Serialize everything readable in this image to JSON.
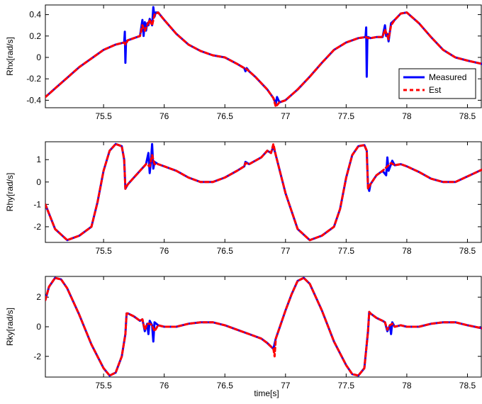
{
  "xlabel": "time[s]",
  "colors": {
    "measured": "#0000ff",
    "est": "#ff0000"
  },
  "legend": {
    "placement": "lower-right",
    "items": [
      "Measured",
      "Est"
    ]
  },
  "chart_data": [
    {
      "type": "line",
      "ylabel": "Rhx[rad/s]",
      "xlim": [
        75.02,
        78.62
      ],
      "ylim": [
        -0.47,
        0.49
      ],
      "xticks": [
        75.5,
        76,
        76.5,
        77,
        77.5,
        78,
        78.5
      ],
      "xtick_labels": [
        "75.5",
        "76",
        "76.5",
        "77",
        "77.5",
        "78",
        "78.5"
      ],
      "yticks": [
        -0.4,
        -0.2,
        0,
        0.2,
        0.4
      ],
      "ytick_labels": [
        "-0.4",
        "-0.2",
        "0",
        "0.2",
        "0.4"
      ],
      "series": [
        {
          "name": "Measured",
          "x": [
            75.02,
            75.1,
            75.2,
            75.3,
            75.4,
            75.5,
            75.6,
            75.67,
            75.675,
            75.68,
            75.685,
            75.7,
            75.75,
            75.8,
            75.82,
            75.83,
            75.84,
            75.85,
            75.86,
            75.87,
            75.88,
            75.9,
            75.91,
            75.92,
            75.93,
            75.95,
            76.0,
            76.1,
            76.2,
            76.3,
            76.4,
            76.5,
            76.6,
            76.66,
            76.67,
            76.68,
            76.7,
            76.75,
            76.8,
            76.85,
            76.9,
            76.92,
            76.93,
            76.95,
            77.0,
            77.1,
            77.2,
            77.3,
            77.4,
            77.5,
            77.6,
            77.66,
            77.665,
            77.67,
            77.675,
            77.68,
            77.7,
            77.75,
            77.8,
            77.82,
            77.83,
            77.84,
            77.85,
            77.87,
            77.9,
            77.95,
            78.0,
            78.1,
            78.2,
            78.3,
            78.4,
            78.5,
            78.62
          ],
          "y": [
            -0.37,
            -0.29,
            -0.19,
            -0.09,
            -0.01,
            0.07,
            0.12,
            0.14,
            0.24,
            -0.05,
            0.15,
            0.16,
            0.18,
            0.2,
            0.35,
            0.2,
            0.33,
            0.25,
            0.32,
            0.3,
            0.36,
            0.3,
            0.47,
            0.38,
            0.42,
            0.42,
            0.35,
            0.22,
            0.12,
            0.06,
            0.02,
            0.0,
            -0.06,
            -0.1,
            -0.13,
            -0.1,
            -0.13,
            -0.18,
            -0.24,
            -0.3,
            -0.38,
            -0.43,
            -0.37,
            -0.42,
            -0.4,
            -0.3,
            -0.18,
            -0.05,
            0.07,
            0.14,
            0.18,
            0.19,
            0.28,
            -0.18,
            0.18,
            0.19,
            0.18,
            0.19,
            0.19,
            0.3,
            0.2,
            0.22,
            0.15,
            0.32,
            0.35,
            0.41,
            0.42,
            0.32,
            0.19,
            0.07,
            0.0,
            -0.03,
            -0.06
          ]
        },
        {
          "name": "Est",
          "x": [
            75.02,
            75.1,
            75.2,
            75.3,
            75.4,
            75.5,
            75.6,
            75.67,
            75.68,
            75.7,
            75.75,
            75.8,
            75.82,
            75.84,
            75.86,
            75.88,
            75.9,
            75.92,
            75.95,
            76.0,
            76.1,
            76.2,
            76.3,
            76.4,
            76.5,
            76.6,
            76.66,
            76.68,
            76.7,
            76.75,
            76.8,
            76.85,
            76.9,
            76.92,
            76.95,
            77.0,
            77.1,
            77.2,
            77.3,
            77.4,
            77.5,
            77.6,
            77.66,
            77.68,
            77.7,
            77.75,
            77.8,
            77.82,
            77.84,
            77.85,
            77.87,
            77.9,
            77.95,
            78.0,
            78.1,
            78.2,
            78.3,
            78.4,
            78.5,
            78.62
          ],
          "y": [
            -0.37,
            -0.29,
            -0.19,
            -0.09,
            -0.01,
            0.07,
            0.12,
            0.14,
            0.12,
            0.16,
            0.18,
            0.2,
            0.3,
            0.25,
            0.3,
            0.35,
            0.3,
            0.4,
            0.42,
            0.35,
            0.22,
            0.12,
            0.06,
            0.02,
            0.0,
            -0.06,
            -0.1,
            -0.11,
            -0.13,
            -0.18,
            -0.24,
            -0.3,
            -0.38,
            -0.46,
            -0.42,
            -0.4,
            -0.3,
            -0.18,
            -0.05,
            0.07,
            0.14,
            0.18,
            0.19,
            0.18,
            0.18,
            0.19,
            0.19,
            0.26,
            0.2,
            0.17,
            0.3,
            0.35,
            0.41,
            0.42,
            0.32,
            0.19,
            0.07,
            0.0,
            -0.03,
            -0.06
          ]
        }
      ]
    },
    {
      "type": "line",
      "ylabel": "Rhy[rad/s]",
      "xlim": [
        75.02,
        78.62
      ],
      "ylim": [
        -2.7,
        1.8
      ],
      "xticks": [
        75.5,
        76,
        76.5,
        77,
        77.5,
        78,
        78.5
      ],
      "xtick_labels": [
        "75.5",
        "76",
        "76.5",
        "77",
        "77.5",
        "78",
        "78.5"
      ],
      "yticks": [
        -2,
        -1,
        0,
        1
      ],
      "ytick_labels": [
        "-2",
        "-1",
        "0",
        "1"
      ],
      "series": [
        {
          "name": "Measured",
          "x": [
            75.02,
            75.1,
            75.2,
            75.3,
            75.4,
            75.45,
            75.5,
            75.55,
            75.6,
            75.65,
            75.67,
            75.68,
            75.69,
            75.7,
            75.75,
            75.8,
            75.85,
            75.87,
            75.88,
            75.89,
            75.9,
            75.91,
            75.92,
            75.95,
            76.0,
            76.1,
            76.2,
            76.3,
            76.4,
            76.5,
            76.6,
            76.66,
            76.67,
            76.7,
            76.8,
            76.85,
            76.88,
            76.9,
            76.92,
            77.0,
            77.1,
            77.2,
            77.3,
            77.4,
            77.45,
            77.5,
            77.55,
            77.6,
            77.65,
            77.67,
            77.68,
            77.69,
            77.7,
            77.75,
            77.8,
            77.83,
            77.84,
            77.85,
            77.87,
            77.88,
            77.9,
            77.95,
            78.0,
            78.1,
            78.2,
            78.3,
            78.4,
            78.5,
            78.62
          ],
          "y": [
            -1.0,
            -2.1,
            -2.6,
            -2.4,
            -2.0,
            -0.9,
            0.5,
            1.4,
            1.7,
            1.6,
            1.0,
            -0.3,
            -0.2,
            -0.1,
            0.2,
            0.5,
            0.8,
            1.3,
            0.4,
            0.9,
            1.7,
            0.6,
            0.9,
            0.8,
            0.7,
            0.5,
            0.2,
            0.0,
            0.0,
            0.2,
            0.5,
            0.7,
            0.9,
            0.8,
            1.1,
            1.4,
            1.3,
            1.6,
            1.2,
            -0.5,
            -2.1,
            -2.6,
            -2.4,
            -2.0,
            -1.2,
            0.2,
            1.2,
            1.6,
            1.65,
            1.4,
            -0.2,
            -0.4,
            -0.1,
            0.3,
            0.5,
            0.3,
            1.1,
            0.5,
            0.8,
            0.95,
            0.75,
            0.8,
            0.7,
            0.45,
            0.15,
            0.0,
            0.0,
            0.25,
            0.55
          ]
        },
        {
          "name": "Est",
          "x": [
            75.02,
            75.1,
            75.2,
            75.3,
            75.4,
            75.45,
            75.5,
            75.55,
            75.6,
            75.65,
            75.67,
            75.68,
            75.7,
            75.75,
            75.8,
            75.85,
            75.88,
            75.9,
            75.92,
            75.95,
            76.0,
            76.1,
            76.2,
            76.3,
            76.4,
            76.5,
            76.6,
            76.66,
            76.67,
            76.7,
            76.8,
            76.85,
            76.88,
            76.9,
            76.92,
            77.0,
            77.1,
            77.2,
            77.3,
            77.4,
            77.45,
            77.5,
            77.55,
            77.6,
            77.65,
            77.67,
            77.68,
            77.7,
            77.75,
            77.8,
            77.84,
            77.87,
            77.9,
            77.95,
            78.0,
            78.1,
            78.2,
            78.3,
            78.4,
            78.5,
            78.62
          ],
          "y": [
            -1.0,
            -2.1,
            -2.6,
            -2.4,
            -2.0,
            -0.9,
            0.5,
            1.4,
            1.7,
            1.6,
            1.0,
            -0.3,
            -0.1,
            0.2,
            0.5,
            0.8,
            0.7,
            1.2,
            0.8,
            0.8,
            0.7,
            0.5,
            0.2,
            0.0,
            0.0,
            0.2,
            0.5,
            0.7,
            0.85,
            0.8,
            1.1,
            1.4,
            1.3,
            1.7,
            1.2,
            -0.5,
            -2.1,
            -2.6,
            -2.4,
            -2.0,
            -1.2,
            0.2,
            1.2,
            1.6,
            1.65,
            1.4,
            -0.3,
            -0.1,
            0.3,
            0.5,
            0.7,
            0.85,
            0.75,
            0.8,
            0.7,
            0.45,
            0.15,
            0.0,
            0.0,
            0.25,
            0.55
          ]
        }
      ]
    },
    {
      "type": "line",
      "ylabel": "Rky[rad/s]",
      "xlim": [
        75.02,
        78.62
      ],
      "ylim": [
        -3.4,
        3.4
      ],
      "xticks": [
        75.5,
        76,
        76.5,
        77,
        77.5,
        78,
        78.5
      ],
      "xtick_labels": [
        "75.5",
        "76",
        "76.5",
        "77",
        "77.5",
        "78",
        "78.5"
      ],
      "yticks": [
        -2,
        0,
        2
      ],
      "ytick_labels": [
        "-2",
        "0",
        "2"
      ],
      "series": [
        {
          "name": "Measured",
          "x": [
            75.02,
            75.05,
            75.1,
            75.15,
            75.2,
            75.3,
            75.4,
            75.5,
            75.55,
            75.6,
            75.65,
            75.68,
            75.69,
            75.7,
            75.75,
            75.8,
            75.82,
            75.84,
            75.86,
            75.87,
            75.88,
            75.9,
            75.91,
            75.92,
            75.95,
            76.0,
            76.1,
            76.2,
            76.3,
            76.4,
            76.5,
            76.6,
            76.7,
            76.8,
            76.85,
            76.9,
            76.92,
            77.0,
            77.05,
            77.1,
            77.15,
            77.2,
            77.3,
            77.4,
            77.5,
            77.55,
            77.6,
            77.65,
            77.68,
            77.69,
            77.7,
            77.75,
            77.8,
            77.82,
            77.84,
            77.86,
            77.87,
            77.88,
            77.9,
            77.95,
            78.0,
            78.1,
            78.2,
            78.3,
            78.4,
            78.5,
            78.62
          ],
          "y": [
            1.8,
            2.7,
            3.3,
            3.2,
            2.6,
            0.8,
            -1.2,
            -2.8,
            -3.3,
            -3.1,
            -2.0,
            -0.5,
            0.9,
            0.9,
            0.7,
            0.4,
            0.5,
            -0.3,
            0.2,
            -0.5,
            0.4,
            0.1,
            -1.0,
            0.3,
            0.1,
            0.0,
            0.0,
            0.2,
            0.3,
            0.3,
            0.1,
            -0.2,
            -0.5,
            -0.8,
            -1.1,
            -1.5,
            -0.8,
            1.1,
            2.2,
            3.1,
            3.3,
            2.9,
            1.1,
            -1.0,
            -2.6,
            -3.2,
            -3.3,
            -2.8,
            -0.3,
            1.0,
            0.9,
            0.6,
            0.4,
            0.3,
            -0.3,
            0.1,
            -0.5,
            0.3,
            0.0,
            0.1,
            0.0,
            0.0,
            0.2,
            0.3,
            0.3,
            0.1,
            -0.1
          ]
        },
        {
          "name": "Est",
          "x": [
            75.02,
            75.05,
            75.1,
            75.15,
            75.2,
            75.3,
            75.4,
            75.5,
            75.55,
            75.6,
            75.65,
            75.68,
            75.69,
            75.7,
            75.75,
            75.8,
            75.82,
            75.84,
            75.86,
            75.88,
            75.9,
            75.92,
            75.95,
            76.0,
            76.1,
            76.2,
            76.3,
            76.4,
            76.5,
            76.6,
            76.7,
            76.8,
            76.85,
            76.9,
            76.91,
            76.92,
            77.0,
            77.05,
            77.1,
            77.15,
            77.2,
            77.3,
            77.4,
            77.5,
            77.55,
            77.6,
            77.65,
            77.68,
            77.69,
            77.7,
            77.75,
            77.8,
            77.82,
            77.84,
            77.86,
            77.88,
            77.9,
            77.95,
            78.0,
            78.1,
            78.2,
            78.3,
            78.4,
            78.5,
            78.62
          ],
          "y": [
            1.8,
            2.7,
            3.3,
            3.2,
            2.6,
            0.8,
            -1.2,
            -2.8,
            -3.3,
            -3.1,
            -2.0,
            -0.5,
            0.9,
            0.9,
            0.7,
            0.4,
            0.5,
            -0.2,
            0.2,
            0.2,
            0.1,
            -0.3,
            0.1,
            0.0,
            0.0,
            0.2,
            0.3,
            0.3,
            0.1,
            -0.2,
            -0.5,
            -0.8,
            -1.1,
            -1.5,
            -2.0,
            -0.8,
            1.1,
            2.2,
            3.1,
            3.3,
            2.9,
            1.1,
            -1.0,
            -2.6,
            -3.2,
            -3.3,
            -2.8,
            -0.3,
            1.0,
            0.9,
            0.6,
            0.4,
            0.3,
            -0.2,
            0.1,
            0.2,
            0.0,
            0.1,
            0.0,
            0.0,
            0.2,
            0.3,
            0.3,
            0.1,
            -0.1
          ]
        }
      ]
    }
  ]
}
